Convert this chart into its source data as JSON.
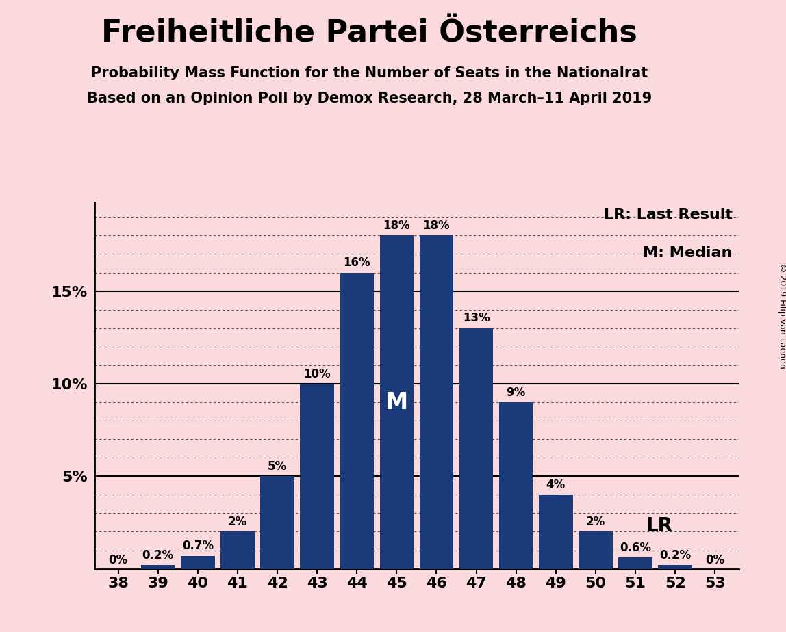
{
  "title": "Freiheitliche Partei Österreichs",
  "subtitle1": "Probability Mass Function for the Number of Seats in the Nationalrat",
  "subtitle2": "Based on an Opinion Poll by Demox Research, 28 March–11 April 2019",
  "copyright": "© 2019 Filip van Laenen",
  "categories": [
    38,
    39,
    40,
    41,
    42,
    43,
    44,
    45,
    46,
    47,
    48,
    49,
    50,
    51,
    52,
    53
  ],
  "values": [
    0.0,
    0.2,
    0.7,
    2.0,
    5.0,
    10.0,
    16.0,
    18.0,
    18.0,
    13.0,
    9.0,
    4.0,
    2.0,
    0.6,
    0.2,
    0.0
  ],
  "bar_color": "#1a3a7a",
  "background_color": "#fadadd",
  "median_seat": 45,
  "lr_seat": 51,
  "legend_lr": "LR: Last Result",
  "legend_m": "M: Median",
  "ylim_max": 19.8,
  "major_yticks": [
    5,
    10,
    15
  ],
  "minor_ytick_values": [
    1,
    2,
    3,
    4,
    6,
    7,
    8,
    9,
    11,
    12,
    13,
    14,
    16,
    17,
    18,
    19
  ],
  "ylabel_pcts": [
    "5%",
    "10%",
    "15%"
  ],
  "bar_labels": [
    "0%",
    "0.2%",
    "0.7%",
    "2%",
    "5%",
    "10%",
    "16%",
    "18%",
    "18%",
    "13%",
    "9%",
    "4%",
    "2%",
    "0.6%",
    "0.2%",
    "0%"
  ]
}
